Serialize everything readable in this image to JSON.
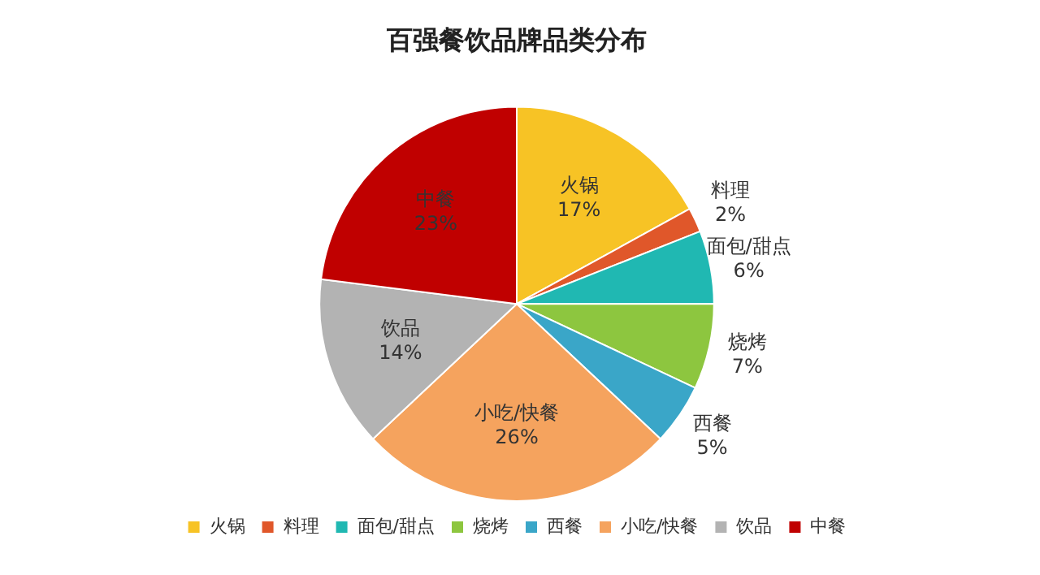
{
  "chart_data": {
    "type": "pie",
    "title": "百强餐饮品牌品类分布",
    "categories": [
      "火锅",
      "料理",
      "面包/甜点",
      "烧烤",
      "西餐",
      "小吃/快餐",
      "饮品",
      "中餐"
    ],
    "values": [
      17,
      2,
      6,
      7,
      5,
      26,
      14,
      23
    ],
    "colors": [
      "#f7c325",
      "#e0572a",
      "#20b8b2",
      "#8dc63f",
      "#3aa6c8",
      "#f5a35e",
      "#b3b3b3",
      "#c00000"
    ],
    "value_labels": [
      "17%",
      "2%",
      "6%",
      "7%",
      "5%",
      "26%",
      "14%",
      "23%"
    ],
    "legend": "bottom"
  }
}
